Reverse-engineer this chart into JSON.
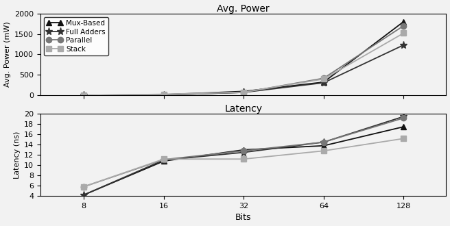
{
  "bits": [
    8,
    16,
    32,
    64,
    128
  ],
  "power": {
    "Mux-Based": [
      5,
      20,
      100,
      325,
      1800
    ],
    "Full Adders": [
      3,
      12,
      75,
      310,
      1230
    ],
    "Parallel": [
      3,
      12,
      75,
      420,
      1700
    ],
    "Stack": [
      3,
      30,
      80,
      400,
      1520
    ]
  },
  "latency": {
    "Mux-Based": [
      4.2,
      10.8,
      13.0,
      13.8,
      17.5
    ],
    "Full Adders": [
      4.2,
      11.0,
      12.5,
      14.5,
      19.5
    ],
    "Parallel": [
      5.8,
      11.1,
      12.8,
      14.5,
      19.2
    ],
    "Stack": [
      5.8,
      11.2,
      11.2,
      12.8,
      15.2
    ]
  },
  "series_styles": {
    "Mux-Based": {
      "color": "#111111",
      "marker": "^",
      "markersize": 6,
      "linewidth": 1.3
    },
    "Full Adders": {
      "color": "#333333",
      "marker": "*",
      "markersize": 8,
      "linewidth": 1.3
    },
    "Parallel": {
      "color": "#777777",
      "marker": "o",
      "markersize": 6,
      "linewidth": 1.3
    },
    "Stack": {
      "color": "#aaaaaa",
      "marker": "s",
      "markersize": 6,
      "linewidth": 1.3
    }
  },
  "power_ylim": [
    0,
    2000
  ],
  "power_yticks": [
    0,
    500,
    1000,
    1500,
    2000
  ],
  "latency_ylim": [
    4,
    20
  ],
  "latency_yticks": [
    4,
    6,
    8,
    10,
    12,
    14,
    16,
    18,
    20
  ],
  "xticks": [
    8,
    16,
    32,
    64,
    128
  ],
  "xlim": [
    5.5,
    185
  ],
  "xlabel": "Bits",
  "ylabel_power": "Avg. Power (mW)",
  "ylabel_latency": "Latency (ns)",
  "title_power": "Avg. Power",
  "title_latency": "Latency",
  "bg_color": "#f2f2f2",
  "legend_order": [
    "Mux-Based",
    "Full Adders",
    "Parallel",
    "Stack"
  ]
}
